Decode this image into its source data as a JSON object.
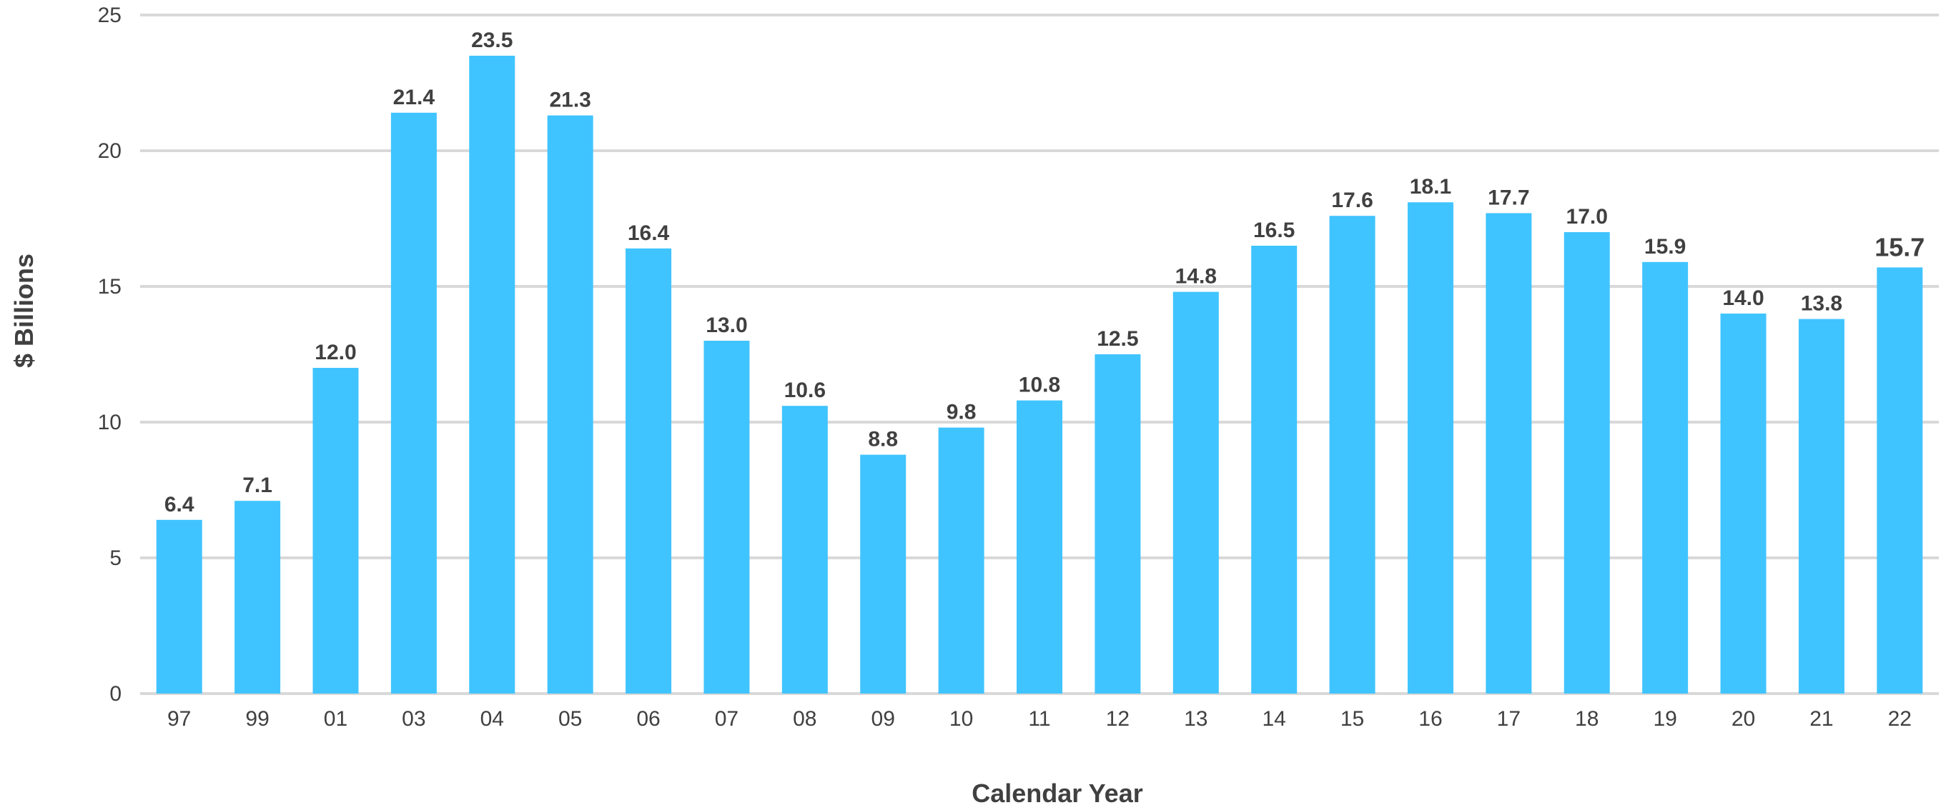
{
  "chart_data": {
    "type": "bar",
    "categories": [
      "97",
      "99",
      "01",
      "03",
      "04",
      "05",
      "06",
      "07",
      "08",
      "09",
      "10",
      "11",
      "12",
      "13",
      "14",
      "15",
      "16",
      "17",
      "18",
      "19",
      "20",
      "21",
      "22"
    ],
    "values": [
      6.4,
      7.1,
      12.0,
      21.4,
      23.5,
      21.3,
      16.4,
      13.0,
      10.6,
      8.8,
      9.8,
      10.8,
      12.5,
      14.8,
      16.5,
      17.6,
      18.1,
      17.7,
      17.0,
      15.9,
      14.0,
      13.8,
      15.7
    ],
    "data_labels": [
      "6.4",
      "7.1",
      "12.0",
      "21.4",
      "23.5",
      "21.3",
      "16.4",
      "13.0",
      "10.6",
      "8.8",
      "9.8",
      "10.8",
      "12.5",
      "14.8",
      "16.5",
      "17.6",
      "18.1",
      "17.7",
      "17.0",
      "15.9",
      "14.0",
      "13.8",
      "15.7"
    ],
    "xlabel": "Calendar Year",
    "ylabel": "$ Billions",
    "ylim": [
      0,
      25
    ],
    "yticks": [
      0,
      5,
      10,
      15,
      20,
      25
    ],
    "ytick_labels": [
      "0",
      "5",
      "10",
      "15",
      "20",
      "25"
    ],
    "grid": true,
    "legend": "none",
    "bar_color": "#40C4FF",
    "grid_color": "#D9D9D9",
    "text_color": "#404040"
  }
}
